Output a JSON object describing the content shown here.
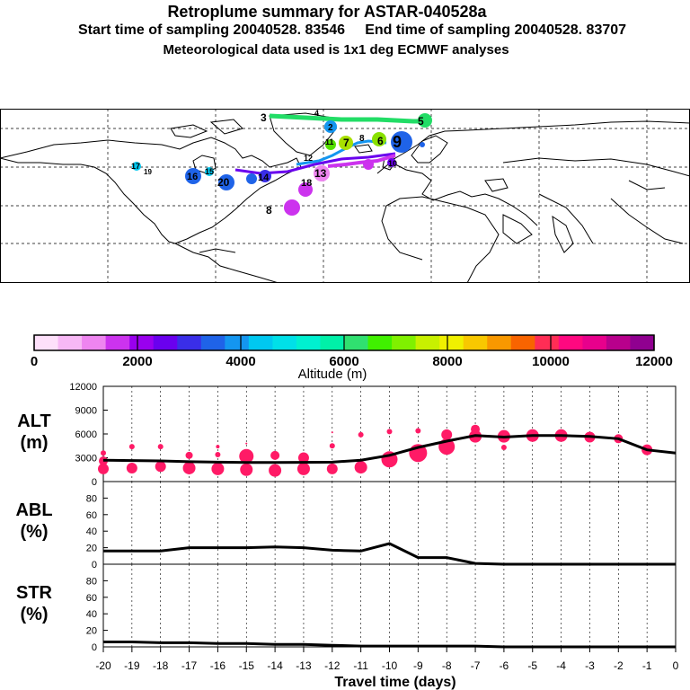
{
  "header": {
    "title": "Retroplume summary for ASTAR-040528a",
    "start_label": "Start time of sampling 20040528. 83546",
    "end_label": "End time of sampling 20040528. 83707",
    "met_label": "Meteorological data used is 1x1 deg ECMWF analyses"
  },
  "colorbar": {
    "label": "Altitude (m)",
    "ticks": [
      "0",
      "2000",
      "4000",
      "6000",
      "8000",
      "10000",
      "12000"
    ],
    "range": [
      0,
      12000
    ],
    "colors": [
      "#fde0fa",
      "#f7b8f5",
      "#ee85f0",
      "#cc33ee",
      "#9900ee",
      "#6a00ee",
      "#3a2ee8",
      "#1f63e8",
      "#1496f0",
      "#00c8f0",
      "#00e0e8",
      "#00f0d0",
      "#00f0a8",
      "#30e070",
      "#40f000",
      "#80f000",
      "#c8f000",
      "#f0f000",
      "#f8c800",
      "#f89800",
      "#f86400",
      "#ff2d55",
      "#ff0880",
      "#e8008c",
      "#b8008c",
      "#900090"
    ]
  },
  "map": {
    "plume_labels": [
      {
        "text": "3",
        "color": "#22dd66"
      },
      {
        "text": "4",
        "color": "#22dd66"
      },
      {
        "text": "5",
        "color": "#22dd66"
      },
      {
        "text": "2",
        "color": "#1496f0"
      },
      {
        "text": "6",
        "color": "#88e000"
      },
      {
        "text": "7",
        "color": "#a8e000"
      },
      {
        "text": "8",
        "color": "#88e000"
      },
      {
        "text": "9",
        "color": "#1f63e8"
      },
      {
        "text": "10",
        "color": "#6a00ee"
      },
      {
        "text": "11",
        "color": "#55e000"
      },
      {
        "text": "12",
        "color": "#00c8f0"
      },
      {
        "text": "13",
        "color": "#ee85f0"
      },
      {
        "text": "14",
        "color": "#3a2ee8"
      },
      {
        "text": "15",
        "color": "#1f63e8"
      },
      {
        "text": "16",
        "color": "#00c8f0"
      },
      {
        "text": "17",
        "color": "#1f63e8"
      },
      {
        "text": "18",
        "color": "#00c8f0"
      },
      {
        "text": "19",
        "color": "#1f63e8"
      },
      {
        "text": "20",
        "color": "#cc33ee"
      },
      {
        "text": "8",
        "color": "#cc33ee"
      }
    ]
  },
  "chart_data": [
    {
      "type": "scatter",
      "panel": "ALT",
      "ylabel": "ALT (m)",
      "ylabel_lines": [
        "ALT",
        "(m)"
      ],
      "ylim": [
        0,
        12000
      ],
      "yticks": [
        "0",
        "3000",
        "6000",
        "9000",
        "12000"
      ],
      "mean_line": {
        "x": [
          -20,
          -19,
          -18,
          -17,
          -16,
          -15,
          -14,
          -13,
          -12,
          -11,
          -10,
          -9,
          -8,
          -7,
          -6,
          -5,
          -4,
          -3,
          -2,
          -1,
          0
        ],
        "y": [
          2700,
          2650,
          2600,
          2500,
          2450,
          2400,
          2400,
          2420,
          2450,
          2700,
          3300,
          4300,
          5100,
          5800,
          5600,
          5800,
          5800,
          5700,
          5400,
          4000,
          3600
        ]
      },
      "points": [
        {
          "x": -20,
          "y": 3600,
          "s": 3
        },
        {
          "x": -20,
          "y": 2600,
          "s": 5
        },
        {
          "x": -20,
          "y": 1600,
          "s": 6
        },
        {
          "x": -19,
          "y": 4400,
          "s": 3
        },
        {
          "x": -19,
          "y": 1700,
          "s": 6
        },
        {
          "x": -18,
          "y": 4400,
          "s": 3
        },
        {
          "x": -18,
          "y": 1900,
          "s": 6
        },
        {
          "x": -17,
          "y": 3300,
          "s": 4
        },
        {
          "x": -17,
          "y": 1700,
          "s": 7
        },
        {
          "x": -16,
          "y": 4400,
          "s": 2
        },
        {
          "x": -16,
          "y": 3400,
          "s": 3
        },
        {
          "x": -16,
          "y": 1600,
          "s": 7
        },
        {
          "x": -15,
          "y": 4800,
          "s": 1
        },
        {
          "x": -15,
          "y": 3200,
          "s": 8
        },
        {
          "x": -15,
          "y": 1500,
          "s": 7
        },
        {
          "x": -14,
          "y": 3300,
          "s": 5
        },
        {
          "x": -14,
          "y": 1400,
          "s": 7
        },
        {
          "x": -13,
          "y": 3000,
          "s": 6
        },
        {
          "x": -13,
          "y": 1600,
          "s": 7
        },
        {
          "x": -12,
          "y": 6200,
          "s": 1
        },
        {
          "x": -12,
          "y": 4500,
          "s": 3
        },
        {
          "x": -12,
          "y": 1600,
          "s": 6
        },
        {
          "x": -11,
          "y": 5900,
          "s": 3
        },
        {
          "x": -11,
          "y": 1800,
          "s": 7
        },
        {
          "x": -10,
          "y": 6300,
          "s": 3
        },
        {
          "x": -10,
          "y": 2800,
          "s": 9
        },
        {
          "x": -9,
          "y": 6400,
          "s": 3
        },
        {
          "x": -9,
          "y": 3600,
          "s": 10
        },
        {
          "x": -8,
          "y": 5900,
          "s": 6
        },
        {
          "x": -8,
          "y": 4400,
          "s": 9
        },
        {
          "x": -7,
          "y": 6600,
          "s": 5
        },
        {
          "x": -7,
          "y": 5700,
          "s": 7
        },
        {
          "x": -6,
          "y": 5700,
          "s": 7
        },
        {
          "x": -6,
          "y": 4300,
          "s": 3
        },
        {
          "x": -5,
          "y": 5800,
          "s": 7
        },
        {
          "x": -4,
          "y": 5800,
          "s": 7
        },
        {
          "x": -3,
          "y": 5600,
          "s": 6
        },
        {
          "x": -2,
          "y": 5400,
          "s": 5
        },
        {
          "x": -1,
          "y": 4000,
          "s": 6
        }
      ]
    },
    {
      "type": "line",
      "panel": "ABL",
      "ylabel": "ABL (%)",
      "ylabel_lines": [
        "ABL",
        "(%)"
      ],
      "ylim": [
        0,
        100
      ],
      "yticks": [
        "0",
        "20",
        "40",
        "60",
        "80"
      ],
      "x": [
        -20,
        -19,
        -18,
        -17,
        -16,
        -15,
        -14,
        -13,
        -12,
        -11,
        -10,
        -9,
        -8,
        -7,
        -6,
        -5,
        -4,
        -3,
        -2,
        -1,
        0
      ],
      "y": [
        16,
        16,
        16,
        20,
        20,
        20,
        21,
        20,
        17,
        16,
        25,
        8,
        8,
        1,
        0,
        0,
        0,
        0,
        0,
        0,
        0
      ]
    },
    {
      "type": "line",
      "panel": "STR",
      "ylabel": "STR (%)",
      "ylabel_lines": [
        "STR",
        "(%)"
      ],
      "ylim": [
        0,
        100
      ],
      "yticks": [
        "0",
        "20",
        "40",
        "60",
        "80"
      ],
      "x": [
        -20,
        -19,
        -18,
        -17,
        -16,
        -15,
        -14,
        -13,
        -12,
        -11,
        -10,
        -9,
        -8,
        -7,
        -6,
        -5,
        -4,
        -3,
        -2,
        -1,
        0
      ],
      "y": [
        6,
        6,
        5,
        5,
        4,
        4,
        3,
        3,
        2,
        1,
        1,
        1,
        1,
        1,
        0,
        0,
        0,
        0,
        0,
        0,
        0
      ]
    },
    {
      "type": "axis",
      "panel": "xaxis",
      "xlabel": "Travel time (days)",
      "xlim": [
        -20,
        0
      ],
      "xticks": [
        "-20",
        "-19",
        "-18",
        "-17",
        "-16",
        "-15",
        "-14",
        "-13",
        "-12",
        "-11",
        "-10",
        "-9",
        "-8",
        "-7",
        "-6",
        "-5",
        "-4",
        "-3",
        "-2",
        "-1",
        "0"
      ]
    }
  ]
}
